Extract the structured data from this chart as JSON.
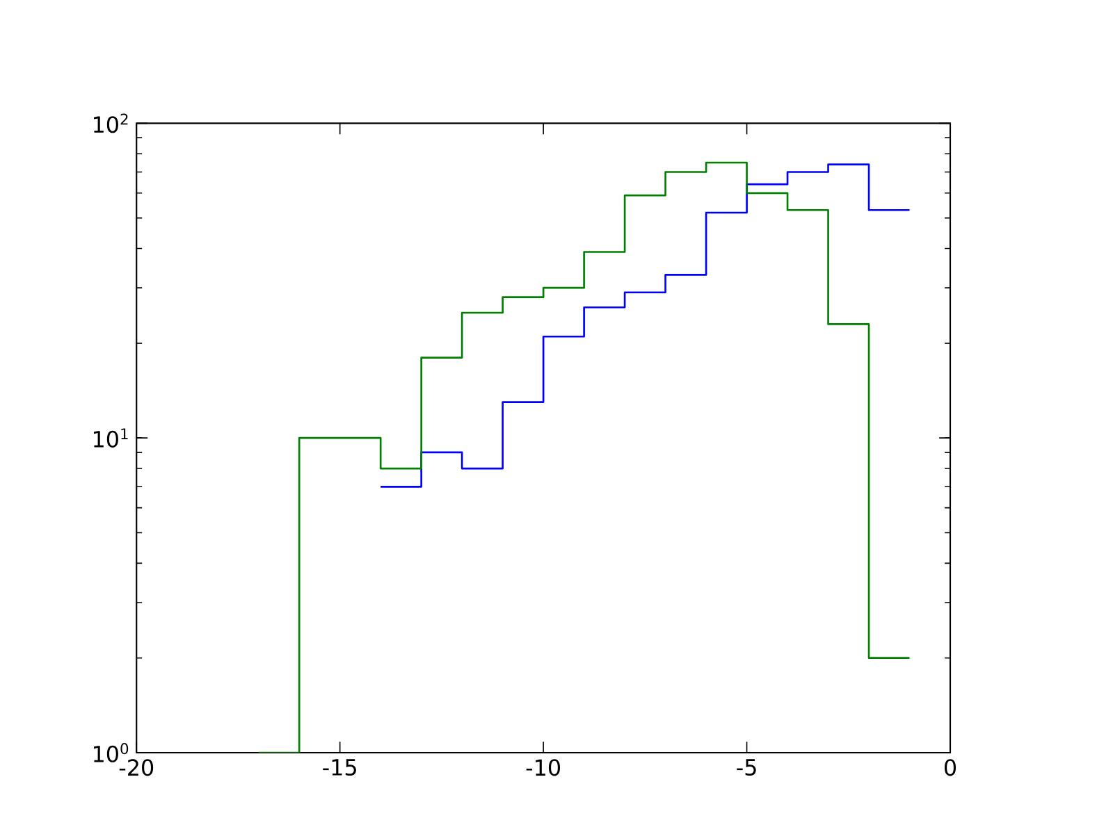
{
  "chart_data": {
    "type": "step",
    "log": "y",
    "xlim": [
      -20,
      0
    ],
    "ylim": [
      1,
      100
    ],
    "xticks": [
      -20,
      -15,
      -10,
      -5,
      0
    ],
    "yticks": [
      {
        "value": 1,
        "label": "10$^{0}$"
      },
      {
        "value": 10,
        "label": "10$^{1}$"
      },
      {
        "value": 100,
        "label": "10$^{2}$"
      }
    ],
    "grid": false,
    "legend": false,
    "marker": "none",
    "line_style": "solid",
    "series": [
      {
        "color": "#0000ff",
        "x": [
          -14,
          -13,
          -12,
          -11,
          -10,
          -9,
          -8,
          -7,
          -6,
          -5,
          -4,
          -3,
          -2,
          -1
        ],
        "values": [
          7,
          9,
          8,
          13,
          21,
          26,
          29,
          33,
          52,
          64,
          70,
          74,
          53,
          53
        ]
      },
      {
        "color": "#008000",
        "x": [
          -17,
          -16,
          -14,
          -13,
          -12,
          -11,
          -10,
          -9,
          -8,
          -7,
          -6,
          -5,
          -4,
          -3,
          -2,
          -1
        ],
        "values": [
          1,
          10,
          8,
          18,
          25,
          28,
          30,
          39,
          59,
          70,
          75,
          60,
          53,
          23,
          2,
          2
        ]
      }
    ]
  }
}
